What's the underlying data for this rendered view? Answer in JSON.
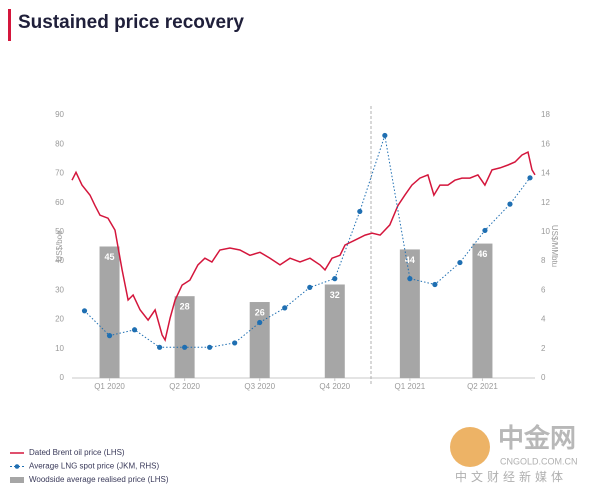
{
  "chart_data": {
    "type": "combo",
    "title": "Sustained price recovery",
    "y_label": "US$/boe",
    "y2_label": "US$/MMbtu",
    "xlim": [
      0,
      18.5
    ],
    "xticks": [
      {
        "value": 1.5,
        "label": "Q1 2020"
      },
      {
        "value": 4.5,
        "label": "Q2 2020"
      },
      {
        "value": 7.5,
        "label": "Q3 2020"
      },
      {
        "value": 10.5,
        "label": "Q4 2020"
      },
      {
        "value": 13.5,
        "label": "Q1 2021"
      },
      {
        "value": 16.4,
        "label": "Q2 2021"
      }
    ],
    "ylim": [
      0,
      90
    ],
    "yticks": [
      0,
      10,
      20,
      30,
      40,
      50,
      60,
      70,
      80,
      90
    ],
    "y2lim": [
      0,
      18
    ],
    "y2ticks": [
      0,
      2,
      4,
      6,
      8,
      10,
      12,
      14,
      16,
      18
    ],
    "series": [
      {
        "name": "Woodside average realised price (LHS)",
        "type": "bar",
        "color": "#a6a6a6",
        "x": [
          1.5,
          4.5,
          7.5,
          10.5,
          13.5,
          16.4
        ],
        "values": [
          45,
          28,
          26,
          32,
          44,
          46
        ]
      },
      {
        "name": "Dated Brent oil price (LHS)",
        "type": "line",
        "color": "#d4163c",
        "x": [
          0,
          0.16,
          0.4,
          0.72,
          0.92,
          1.12,
          1.44,
          1.72,
          2.0,
          2.24,
          2.44,
          2.72,
          3.04,
          3.32,
          3.6,
          3.72,
          3.92,
          4.12,
          4.4,
          4.71,
          5.03,
          5.31,
          5.59,
          5.91,
          6.31,
          6.71,
          7.11,
          7.51,
          7.91,
          8.31,
          8.71,
          9.11,
          9.51,
          9.91,
          10.11,
          10.39,
          10.71,
          10.91,
          11.31,
          11.71,
          11.99,
          12.31,
          12.7,
          13.02,
          13.3,
          13.58,
          13.9,
          14.22,
          14.46,
          14.7,
          15.02,
          15.3,
          15.58,
          15.9,
          16.22,
          16.5,
          16.78,
          17.1,
          17.42,
          17.7,
          17.98,
          18.22,
          18.38,
          18.5
        ],
        "values": [
          67.7,
          70.4,
          66,
          62.6,
          59,
          55.7,
          54.7,
          50.6,
          37,
          26.7,
          28.4,
          23.3,
          19.8,
          23.3,
          14.7,
          13,
          20.5,
          26.7,
          31.8,
          33.5,
          38.7,
          41,
          39.7,
          43.8,
          44.5,
          43.8,
          42,
          43,
          41,
          38.7,
          41,
          39.7,
          41,
          38.7,
          37,
          41,
          42,
          45.5,
          47.2,
          48.9,
          49.6,
          48.9,
          52.4,
          59,
          62.6,
          66,
          68.4,
          69.5,
          62.6,
          66,
          66,
          67.7,
          68.4,
          68.4,
          69.5,
          66,
          71.2,
          71.9,
          72.9,
          73.9,
          76.3,
          77.3,
          71.2,
          69.5
        ]
      },
      {
        "name": "Average LNG spot price (JKM, RHS)",
        "type": "dotted-line",
        "axis": "y2",
        "color": "#1f6fb2",
        "x": [
          0.5,
          1.5,
          2.5,
          3.5,
          4.5,
          5.5,
          6.5,
          7.5,
          8.5,
          9.5,
          10.5,
          11.5,
          12.5,
          13.5,
          14.5,
          15.5,
          16.5,
          17.5,
          18.3
        ],
        "values": [
          4.6,
          2.9,
          3.3,
          2.1,
          2.1,
          2.1,
          2.4,
          3.8,
          4.8,
          6.2,
          6.8,
          11.4,
          16.6,
          6.8,
          6.4,
          7.9,
          10.1,
          11.9,
          13.7
        ]
      }
    ]
  },
  "watermark": {
    "brand": "中金网",
    "site": "CNGOLD.COM.CN",
    "tagline": "中文财经新媒体"
  }
}
